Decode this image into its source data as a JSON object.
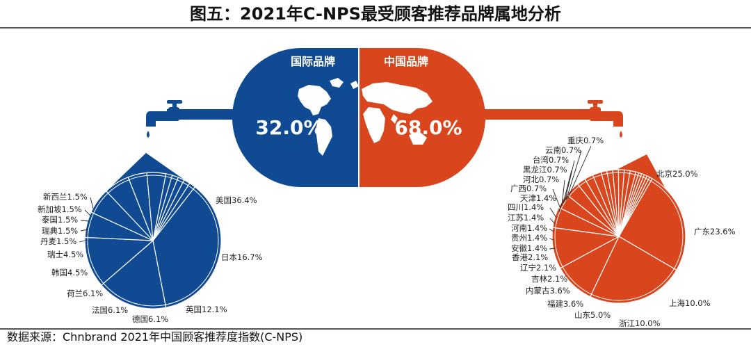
{
  "title": "图五：2021年C-NPS最受顾客推荐品牌属地分析",
  "source": "数据来源：Chnbrand 2021年中国顾客推荐度指数(C-NPS)",
  "colors": {
    "international": "#0f4a93",
    "china": "#d9451c"
  },
  "icons": [
    "faucet-icon",
    "water-drop-icon",
    "world-map-icon"
  ],
  "chart_data": [
    {
      "type": "bar",
      "categories": [
        "国际品牌",
        "中国品牌"
      ],
      "values": [
        32.0,
        68.0
      ],
      "value_labels": [
        "32.0%",
        "68.0%"
      ]
    },
    {
      "type": "pie",
      "labels": [
        "美国",
        "日本",
        "英国",
        "德国",
        "法国",
        "荷兰",
        "韩国",
        "瑞士",
        "丹麦",
        "瑞典",
        "泰国",
        "新加坡",
        "新西兰"
      ],
      "values": [
        36.4,
        16.7,
        12.1,
        6.1,
        6.1,
        6.1,
        4.5,
        4.5,
        1.5,
        1.5,
        1.5,
        1.5,
        1.5
      ],
      "value_labels": [
        "美国36.4%",
        "日本16.7%",
        "英国12.1%",
        "德国6.1%",
        "法国6.1%",
        "荷兰6.1%",
        "韩国4.5%",
        "瑞士4.5%",
        "丹麦1.5%",
        "瑞典1.5%",
        "泰国1.5%",
        "新加坡1.5%",
        "新西兰1.5%"
      ]
    },
    {
      "type": "pie",
      "labels": [
        "北京",
        "广东",
        "上海",
        "浙江",
        "山东",
        "福建",
        "内蒙古",
        "吉林",
        "辽宁",
        "香港",
        "安徽",
        "贵州",
        "河南",
        "江苏",
        "四川",
        "天津",
        "广西",
        "河北",
        "黑龙江",
        "台湾",
        "云南",
        "重庆"
      ],
      "values": [
        25.0,
        23.6,
        10.0,
        10.0,
        5.0,
        3.6,
        3.6,
        2.1,
        2.1,
        2.1,
        1.4,
        1.4,
        1.4,
        1.4,
        1.4,
        1.4,
        0.7,
        0.7,
        0.7,
        0.7,
        0.7,
        0.7
      ],
      "value_labels": [
        "北京25.0%",
        "广东23.6%",
        "上海10.0%",
        "浙江10.0%",
        "山东5.0%",
        "福建3.6%",
        "内蒙古3.6%",
        "吉林2.1%",
        "辽宁2.1%",
        "香港2.1%",
        "安徽1.4%",
        "贵州1.4%",
        "河南1.4%",
        "江苏1.4%",
        "四川1.4%",
        "天津1.4%",
        "广西0.7%",
        "河北0.7%",
        "黑龙江0.7%",
        "台湾0.7%",
        "云南0.7%",
        "重庆0.7%"
      ]
    }
  ]
}
